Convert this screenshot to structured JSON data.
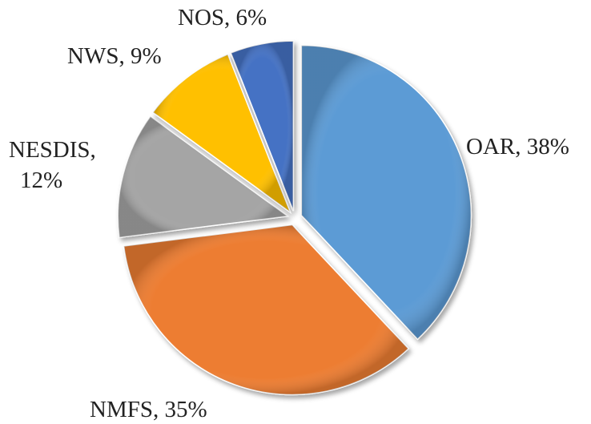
{
  "chart_data": {
    "type": "pie",
    "slices": [
      {
        "label": "OAR",
        "value": 38,
        "label_text": "OAR, 38%",
        "color": "#5b9bd5"
      },
      {
        "label": "NMFS",
        "value": 35,
        "label_text": "NMFS, 35%",
        "color": "#ed7d31"
      },
      {
        "label": "NESDIS",
        "value": 12,
        "label_text": "NESDIS, 12%",
        "label_lines": [
          "NESDIS,",
          "12%"
        ],
        "color": "#a5a5a5"
      },
      {
        "label": "NWS",
        "value": 9,
        "label_text": "NWS, 9%",
        "color": "#ffc000"
      },
      {
        "label": "NOS",
        "value": 6,
        "label_text": "NOS, 6%",
        "color": "#4472c4"
      }
    ],
    "start_angle": "12 o'clock, clockwise",
    "exploded": true,
    "style": "3D bevel with shadow",
    "legend": "none (data labels outside slices)"
  }
}
